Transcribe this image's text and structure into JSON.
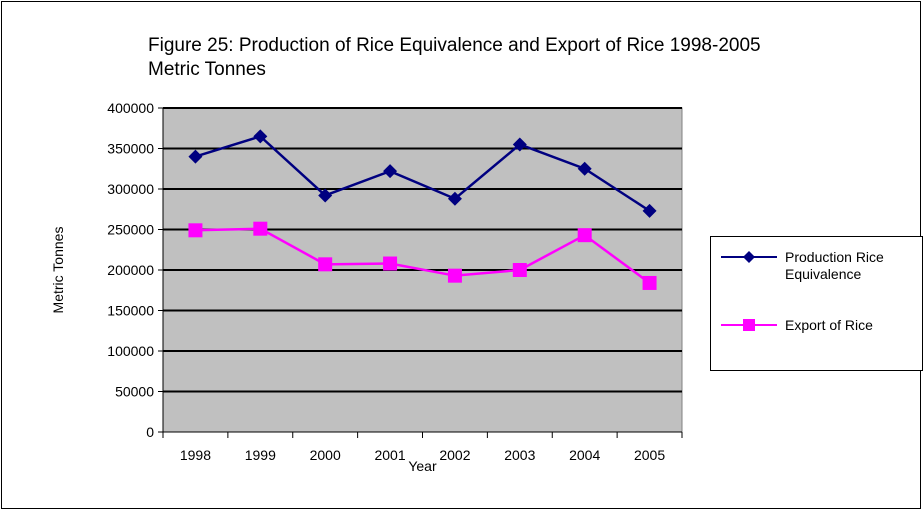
{
  "chart_data": {
    "type": "line",
    "title": "Figure 25: Production of Rice Equivalence and Export of Rice 1998-2005",
    "subtitle": "Metric Tonnes",
    "xlabel": "Year",
    "ylabel": "Metric Tonnes",
    "categories": [
      "1998",
      "1999",
      "2000",
      "2001",
      "2002",
      "2003",
      "2004",
      "2005"
    ],
    "ylim": [
      0,
      400000
    ],
    "yticks": [
      "0",
      "50000",
      "100000",
      "150000",
      "200000",
      "250000",
      "300000",
      "350000",
      "400000"
    ],
    "grid": true,
    "legend_position": "right",
    "plot_background": "#c0c0c0",
    "series": [
      {
        "name": "Production Rice Equivalence",
        "color": "#000080",
        "marker": "diamond",
        "values": [
          340000,
          365000,
          292000,
          322000,
          288000,
          355000,
          325000,
          273000
        ]
      },
      {
        "name": "Export of Rice",
        "color": "#ff00ff",
        "marker": "square",
        "values": [
          249000,
          251000,
          207000,
          208000,
          193000,
          200000,
          243000,
          184000
        ]
      }
    ]
  }
}
